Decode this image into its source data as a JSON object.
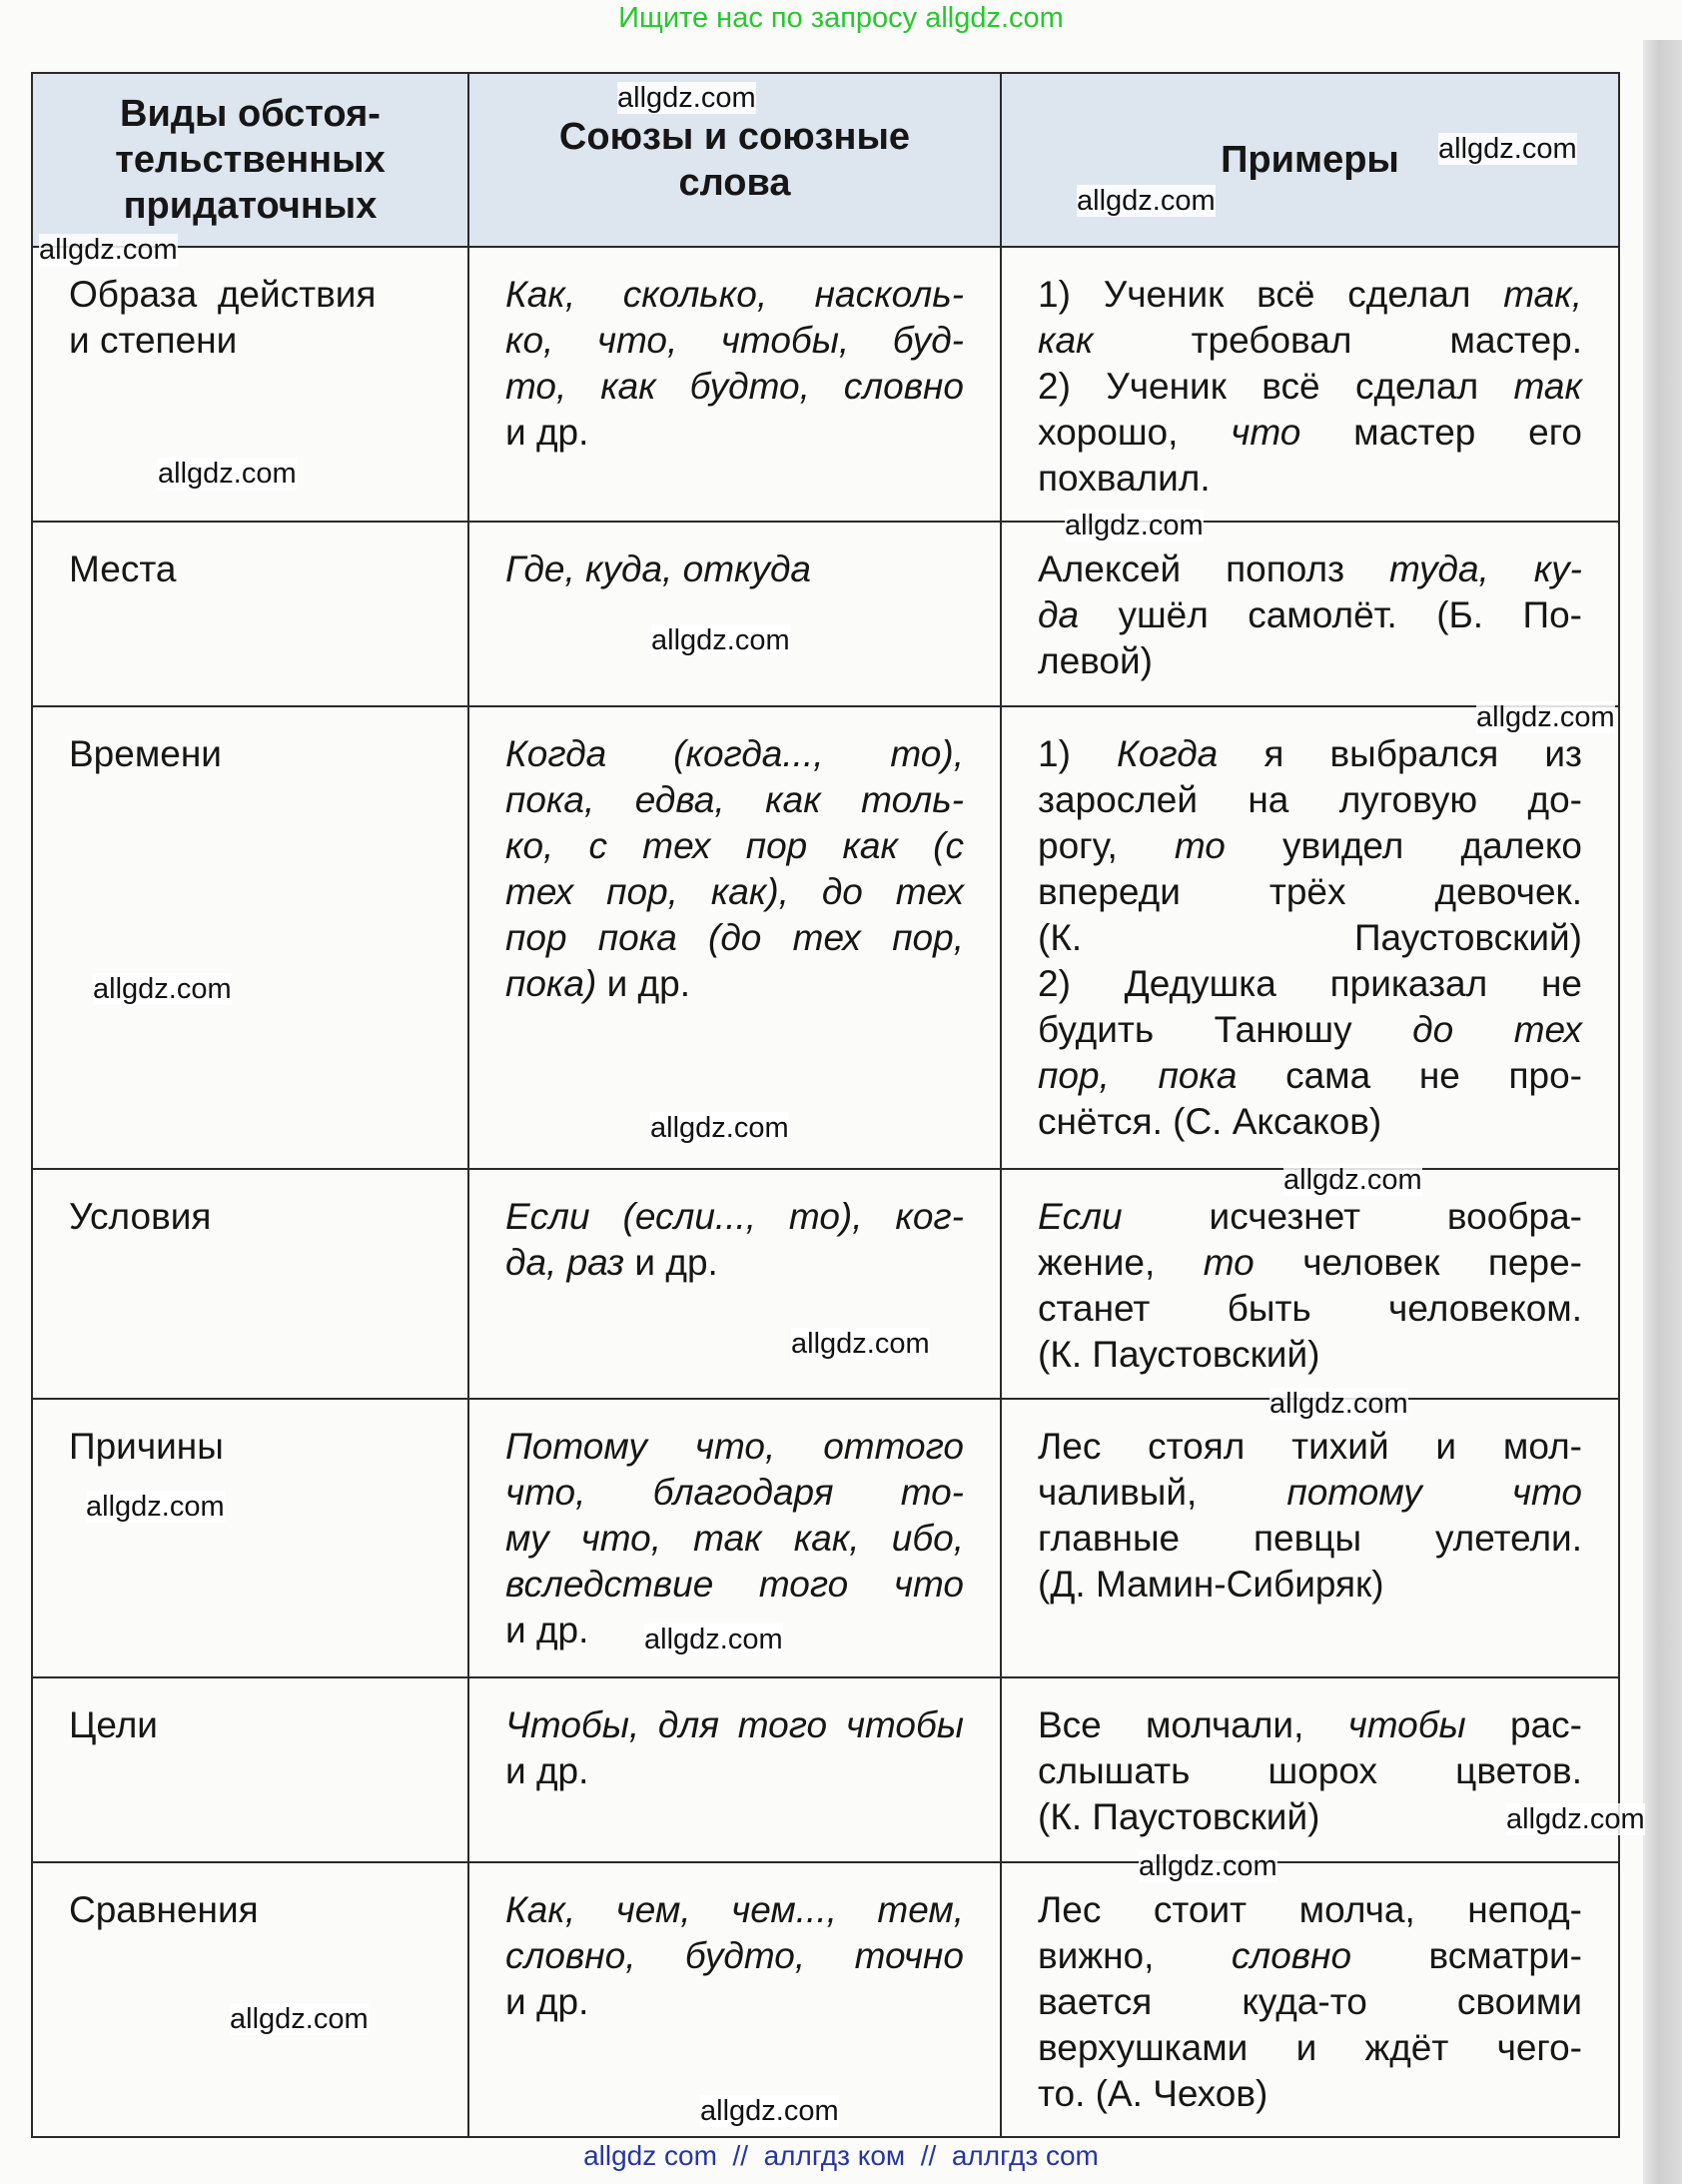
{
  "top_note": "Ищите нас по запросу allgdz.com",
  "footer": "allgdz com  //  аллгдз ком  //  аллгдз com",
  "watermark": "allgdz.com",
  "colors": {
    "top_note": "#26c82c",
    "footer": "#2636a0",
    "header_bg": "#dde5ef"
  },
  "table": {
    "headers": [
      "Виды обстоя-\nтельственных\nпридаточных",
      "Союзы и союзные\nслова",
      "Примеры"
    ],
    "rows": [
      {
        "type": [
          "Образа  действия",
          "и степени"
        ],
        "conj": [
          [
            {
              "i": "Как, сколько, насколь-"
            }
          ],
          [
            {
              "i": "ко, что, чтобы, буд-"
            }
          ],
          [
            {
              "i": "то, как будто, словно"
            }
          ],
          [
            "и др."
          ]
        ],
        "ex": [
          [
            "1) Ученик всё сделал ",
            {
              "i": "так,"
            }
          ],
          [
            {
              "i": "как"
            },
            " требовал мастер."
          ],
          [
            "2) Ученик всё сделал ",
            {
              "i": "так"
            }
          ],
          [
            "хорошо, ",
            {
              "i": "что"
            },
            " мастер его"
          ],
          [
            "похвалил."
          ]
        ]
      },
      {
        "type": [
          "Места"
        ],
        "conj": [
          [
            {
              "i": "Где, куда, откуда"
            }
          ]
        ],
        "ex": [
          [
            "Алексей пополз ",
            {
              "i": "туда, ку-"
            }
          ],
          [
            {
              "i": "да"
            },
            " ушёл самолёт. (Б. По-"
          ],
          [
            "левой)"
          ]
        ]
      },
      {
        "type": [
          "Времени"
        ],
        "conj": [
          [
            {
              "i": "Когда (когда..., то),"
            }
          ],
          [
            {
              "i": "пока, едва, как толь-"
            }
          ],
          [
            {
              "i": "ко, с тех пор как (с"
            }
          ],
          [
            {
              "i": "тех пор, как), до тех"
            }
          ],
          [
            {
              "i": "пор пока (до тех пор,"
            }
          ],
          [
            {
              "i": "пока)"
            },
            " и др."
          ]
        ],
        "ex": [
          [
            "1) ",
            {
              "i": "Когда"
            },
            " я выбрался из"
          ],
          [
            "зарослей на луговую до-"
          ],
          [
            "рогу, ",
            {
              "i": "то"
            },
            " увидел далеко"
          ],
          [
            "впереди трёх девочек."
          ],
          [
            "(К. Паустовский)"
          ],
          [
            "2) Дедушка приказал не"
          ],
          [
            "будить Танюшу ",
            {
              "i": "до тех"
            }
          ],
          [
            {
              "i": "пор, пока"
            },
            " сама не про-"
          ],
          [
            "снётся. (С. Аксаков)"
          ]
        ]
      },
      {
        "type": [
          "Условия"
        ],
        "conj": [
          [
            {
              "i": "Если (если..., то), ког-"
            }
          ],
          [
            {
              "i": "да, раз"
            },
            " и др."
          ]
        ],
        "ex": [
          [
            {
              "i": "Если"
            },
            " исчезнет вообра-"
          ],
          [
            "жение, ",
            {
              "i": "то"
            },
            " человек пере-"
          ],
          [
            "станет быть человеком."
          ],
          [
            "(К. Паустовский)"
          ]
        ]
      },
      {
        "type": [
          "Причины"
        ],
        "conj": [
          [
            {
              "i": "Потому что, оттого"
            }
          ],
          [
            {
              "i": "что, благодаря то-"
            }
          ],
          [
            {
              "i": "му что, так как, ибо,"
            }
          ],
          [
            {
              "i": "вследствие того что"
            }
          ],
          [
            "и др."
          ]
        ],
        "ex": [
          [
            "Лес стоял тихий и мол-"
          ],
          [
            "чаливый, ",
            {
              "i": "потому что"
            }
          ],
          [
            "главные певцы улетели."
          ],
          [
            "(Д. Мамин-Сибиряк)"
          ]
        ]
      },
      {
        "type": [
          "Цели"
        ],
        "conj": [
          [
            {
              "i": "Чтобы, для того чтобы"
            }
          ],
          [
            "и др."
          ]
        ],
        "ex": [
          [
            "Все молчали, ",
            {
              "i": "чтобы"
            },
            " рас-"
          ],
          [
            "слышать шорох цветов."
          ],
          [
            "(К. Паустовский)"
          ]
        ]
      },
      {
        "type": [
          "Сравнения"
        ],
        "conj": [
          [
            {
              "i": "Как, чем, чем..., тем,"
            }
          ],
          [
            {
              "i": "словно, будто, точно"
            }
          ],
          [
            "и др."
          ]
        ],
        "ex": [
          [
            "Лес стоит молча, непод-"
          ],
          [
            "вижно, ",
            {
              "i": "словно"
            },
            " всматри-"
          ],
          [
            "вается куда-то своими"
          ],
          [
            "верхушками и ждёт чего-"
          ],
          [
            "то. (А. Чехов)"
          ]
        ]
      }
    ]
  }
}
